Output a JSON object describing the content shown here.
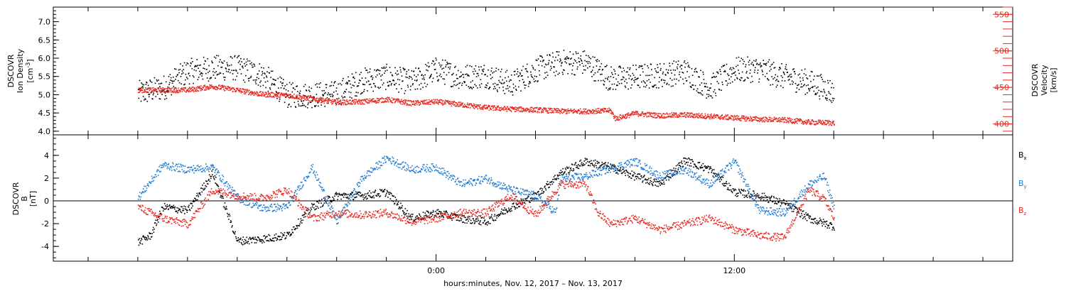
{
  "chart_data": [
    {
      "type": "scatter",
      "panel": "top",
      "left_axis": {
        "label_lines": [
          "DSCOVR",
          "Ion Density"
        ],
        "unit": "[cm-3]",
        "unit_base": "[cm",
        "unit_sup": "-3",
        "unit_close": "]",
        "ylim": [
          3.9,
          7.4
        ],
        "ticks": [
          "4.0",
          "4.5",
          "5.0",
          "5.5",
          "6.0",
          "6.5",
          "7.0"
        ],
        "tick_values": [
          4.0,
          4.5,
          5.0,
          5.5,
          6.0,
          6.5,
          7.0
        ],
        "color": "#000000"
      },
      "right_axis": {
        "label_lines": [
          "DSCOVR",
          "Velocity",
          "[km/s]"
        ],
        "ylim": [
          385,
          560
        ],
        "ticks": [
          "400",
          "450",
          "500",
          "550"
        ],
        "tick_values": [
          400,
          450,
          500,
          550
        ],
        "color": "#e8271f"
      },
      "series": [
        {
          "axis": "left",
          "color": "#000000",
          "points": [
            [
              -12,
              5.05
            ],
            [
              -11,
              5.2
            ],
            [
              -10,
              5.65
            ],
            [
              -9,
              5.75
            ],
            [
              -8,
              5.75
            ],
            [
              -7,
              5.55
            ],
            [
              -6,
              5.0
            ],
            [
              -5,
              5.0
            ],
            [
              -4,
              5.05
            ],
            [
              -3,
              5.4
            ],
            [
              -2,
              5.5
            ],
            [
              -1,
              5.35
            ],
            [
              0,
              5.7
            ],
            [
              1,
              5.5
            ],
            [
              2,
              5.55
            ],
            [
              3,
              5.3
            ],
            [
              4,
              5.7
            ],
            [
              5,
              5.9
            ],
            [
              6,
              5.9
            ],
            [
              7,
              5.45
            ],
            [
              8,
              5.5
            ],
            [
              9,
              5.55
            ],
            [
              10,
              5.65
            ],
            [
              11,
              5.2
            ],
            [
              12,
              5.7
            ],
            [
              13,
              5.7
            ],
            [
              14,
              5.5
            ],
            [
              15,
              5.35
            ],
            [
              15.8,
              5.15
            ],
            [
              16,
              5.0
            ]
          ]
        },
        {
          "axis": "right",
          "color": "#e8271f",
          "points": [
            [
              -12,
              447
            ],
            [
              -10,
              447
            ],
            [
              -9,
              452
            ],
            [
              -8,
              447
            ],
            [
              -7,
              441
            ],
            [
              -6,
              440
            ],
            [
              -5,
              435
            ],
            [
              -4,
              430
            ],
            [
              -3,
              431
            ],
            [
              -2,
              434
            ],
            [
              -1,
              429
            ],
            [
              0,
              431
            ],
            [
              1,
              427
            ],
            [
              2,
              423
            ],
            [
              3,
              421
            ],
            [
              4,
              420
            ],
            [
              5,
              418
            ],
            [
              6,
              418
            ],
            [
              7,
              419
            ],
            [
              7.2,
              408
            ],
            [
              8,
              415
            ],
            [
              9,
              412
            ],
            [
              10,
              413
            ],
            [
              11,
              411
            ],
            [
              12,
              409
            ],
            [
              13,
              407
            ],
            [
              14,
              406
            ],
            [
              15,
              403
            ],
            [
              16,
              402
            ]
          ]
        }
      ]
    },
    {
      "type": "scatter",
      "panel": "bottom",
      "left_axis": {
        "label_lines": [
          "DSCOVR",
          "B"
        ],
        "unit": "[nT]",
        "ylim": [
          -5.3,
          5.8
        ],
        "ticks": [
          "-4",
          "-2",
          "0",
          "2",
          "4"
        ],
        "tick_values": [
          -4,
          -2,
          0,
          2,
          4
        ]
      },
      "zero_line": true,
      "series": [
        {
          "name": "Bx",
          "name_base": "B",
          "name_sub": "x",
          "color": "#000000",
          "points": [
            [
              -12,
              -3.6
            ],
            [
              -11.5,
              -3.0
            ],
            [
              -11,
              -0.5
            ],
            [
              -10,
              -0.8
            ],
            [
              -9,
              2.5
            ],
            [
              -8,
              -3.5
            ],
            [
              -7,
              -3.3
            ],
            [
              -6,
              -3.0
            ],
            [
              -5,
              -0.5
            ],
            [
              -4,
              0.5
            ],
            [
              -3,
              0.5
            ],
            [
              -2,
              0.8
            ],
            [
              -1,
              -1.5
            ],
            [
              0,
              -1.0
            ],
            [
              1,
              -1.5
            ],
            [
              2,
              -1.8
            ],
            [
              3,
              -0.5
            ],
            [
              4,
              0.5
            ],
            [
              5,
              2.5
            ],
            [
              6,
              3.5
            ],
            [
              7,
              3.0
            ],
            [
              8,
              2.2
            ],
            [
              9,
              1.5
            ],
            [
              10,
              3.6
            ],
            [
              11,
              2.8
            ],
            [
              12,
              0.8
            ],
            [
              13,
              0.5
            ],
            [
              14,
              -0.2
            ],
            [
              15,
              -1.5
            ],
            [
              16,
              -2.2
            ]
          ]
        },
        {
          "name": "By",
          "name_base": "B",
          "name_sub": "y",
          "color": "#1e7bd4",
          "points": [
            [
              -12,
              0.3
            ],
            [
              -11,
              3.2
            ],
            [
              -10,
              2.8
            ],
            [
              -9,
              3.0
            ],
            [
              -8,
              0.3
            ],
            [
              -7,
              -0.6
            ],
            [
              -6,
              -0.5
            ],
            [
              -5,
              3.0
            ],
            [
              -4,
              -1.8
            ],
            [
              -3,
              2.0
            ],
            [
              -2,
              3.8
            ],
            [
              -1,
              2.8
            ],
            [
              0,
              3.0
            ],
            [
              1,
              1.5
            ],
            [
              2,
              2.0
            ],
            [
              3,
              1.0
            ],
            [
              4,
              0.5
            ],
            [
              4.8,
              -1.0
            ],
            [
              5,
              2.0
            ],
            [
              6,
              2.2
            ],
            [
              7,
              2.9
            ],
            [
              8,
              3.5
            ],
            [
              9,
              2.2
            ],
            [
              10,
              2.8
            ],
            [
              11,
              1.5
            ],
            [
              12,
              3.5
            ],
            [
              13,
              -0.8
            ],
            [
              14,
              -1.0
            ],
            [
              15,
              1.5
            ],
            [
              15.6,
              2.2
            ],
            [
              16,
              -0.5
            ]
          ]
        },
        {
          "name": "Bz",
          "name_base": "B",
          "name_sub": "z",
          "color": "#e8271f",
          "points": [
            [
              -12,
              -0.5
            ],
            [
              -11,
              -1.5
            ],
            [
              -10,
              -2.0
            ],
            [
              -9,
              1.0
            ],
            [
              -8,
              0.5
            ],
            [
              -7,
              0.3
            ],
            [
              -6,
              1.0
            ],
            [
              -5,
              -1.5
            ],
            [
              -4,
              -1.0
            ],
            [
              -3,
              -1.2
            ],
            [
              -2,
              -1.0
            ],
            [
              -1,
              -1.8
            ],
            [
              0,
              -1.5
            ],
            [
              1,
              -1.0
            ],
            [
              2,
              -1.0
            ],
            [
              3,
              0.5
            ],
            [
              4,
              -1.2
            ],
            [
              5,
              1.5
            ],
            [
              6,
              1.5
            ],
            [
              6.5,
              -1.0
            ],
            [
              7,
              -2.0
            ],
            [
              8,
              -1.5
            ],
            [
              9,
              -2.5
            ],
            [
              10,
              -2.0
            ],
            [
              11,
              -1.5
            ],
            [
              12,
              -2.5
            ],
            [
              13,
              -3.0
            ],
            [
              14,
              -3.2
            ],
            [
              15,
              1.0
            ],
            [
              15.6,
              0.2
            ],
            [
              16,
              -1.5
            ]
          ]
        }
      ],
      "legend_placement": "right"
    }
  ],
  "x_axis": {
    "xlim": [
      -15.4,
      23.2
    ],
    "unit": "hours relative to Nov. 13, 2017 00:00",
    "major_ticks": [
      0,
      12
    ],
    "major_labels": [
      "0:00",
      "12:00"
    ],
    "minor_step_hours": 2,
    "title": "hours:minutes, Nov. 12, 2017 – Nov. 13, 2017"
  }
}
